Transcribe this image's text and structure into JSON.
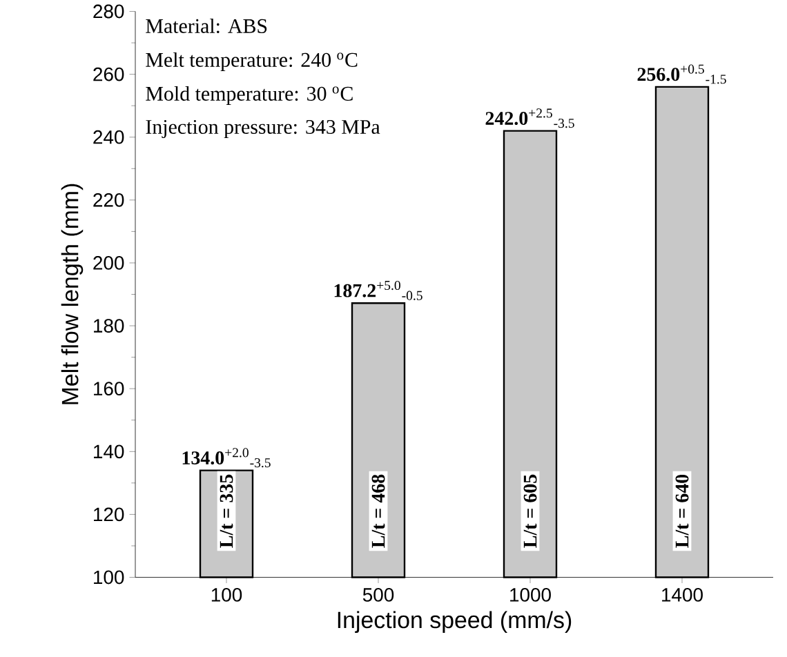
{
  "chart_data": {
    "type": "bar",
    "xlabel": "Injection speed (mm/s)",
    "ylabel": "Melt flow length (mm)",
    "categories": [
      "100",
      "500",
      "1000",
      "1400"
    ],
    "values": [
      134.0,
      187.2,
      242.0,
      256.0
    ],
    "value_labels": [
      "**134.0**$^{+2.0}$$_{-3.5}$",
      "**187.2**$^{+5.0}$$_{-0.5}$",
      "**242.0**$^{+2.5}$$_{-3.5}$",
      "**256.0**$^{+0.5}$$_{-1.5}$"
    ],
    "color": "#c8c8c8",
    "ylim": [
      100,
      280
    ],
    "yticks": [
      100,
      120,
      140,
      160,
      180,
      200,
      220,
      240,
      260,
      280
    ],
    "grid": false,
    "annotations": [
      "Material: ABS",
      "Melt temperature: 240 $^{o}$C",
      "Mold temperature: 30 $^{o}$C",
      "Injection pressure: 343 MPa",
      "L/t = 335",
      "L/t = 468",
      "L/t = 605",
      "L/t = 640"
    ]
  }
}
